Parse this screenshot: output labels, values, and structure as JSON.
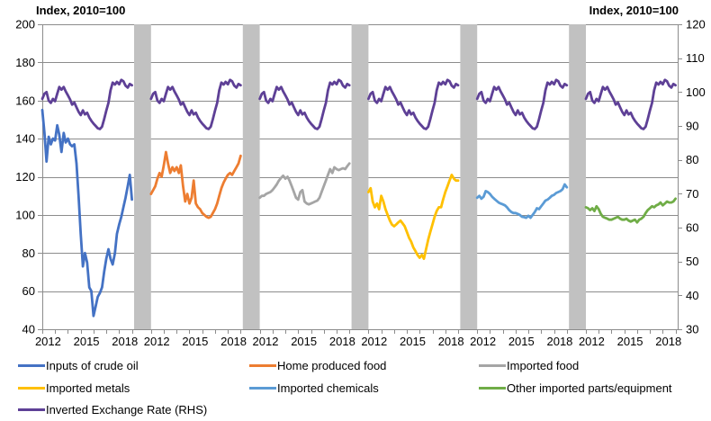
{
  "chart": {
    "left_axis_title": "Index, 2010=100",
    "right_axis_title": "Index, 2010=100"
  },
  "chart_data": {
    "type": "line",
    "layout": "six small-multiple panels separated by grey bands; each panel shows one price series (left axis) plus the inverted exchange rate (right axis)",
    "left_axis": {
      "title": "Index, 2010=100",
      "min": 40,
      "max": 200,
      "step": 20,
      "ticks": [
        200,
        180,
        160,
        140,
        120,
        100,
        80,
        60,
        40
      ]
    },
    "right_axis": {
      "title": "Index, 2010=100",
      "min": 30,
      "max": 120,
      "step": 10,
      "ticks": [
        120,
        110,
        100,
        90,
        80,
        70,
        60,
        50,
        40,
        30
      ]
    },
    "x_axis": {
      "min": 2012,
      "max": 2019.17,
      "tick_step_years": 1,
      "label_years": [
        2012,
        2015,
        2018
      ]
    },
    "x": [
      2012,
      2012.17,
      2012.33,
      2012.5,
      2012.67,
      2012.83,
      2013,
      2013.17,
      2013.33,
      2013.5,
      2013.67,
      2013.83,
      2014,
      2014.17,
      2014.33,
      2014.5,
      2014.67,
      2014.83,
      2015,
      2015.17,
      2015.33,
      2015.5,
      2015.67,
      2015.83,
      2016,
      2016.17,
      2016.33,
      2016.5,
      2016.67,
      2016.83,
      2017,
      2017.17,
      2017.33,
      2017.5,
      2017.67,
      2017.83,
      2018,
      2018.17,
      2018.33,
      2018.5,
      2018.67,
      2018.83,
      2019
    ],
    "panels": [
      {
        "label": "Inputs of crude oil",
        "color": "#4472C4",
        "axis": "left",
        "values": [
          155,
          143,
          128,
          141,
          137,
          140,
          139,
          147,
          142,
          133,
          143,
          138,
          140,
          137,
          136,
          137,
          127,
          110,
          90,
          73,
          80,
          75,
          62,
          60,
          47,
          52,
          57,
          59,
          62,
          70,
          77,
          82,
          77,
          74,
          80,
          90,
          95,
          99,
          104,
          109,
          115,
          121,
          108
        ]
      },
      {
        "label": "Home produced food",
        "color": "#ED7D31",
        "axis": "left",
        "values": [
          111,
          113,
          115,
          119,
          122,
          120,
          126,
          133,
          127,
          122,
          125,
          123,
          125,
          122,
          126,
          115,
          107,
          111,
          106,
          109,
          118,
          106,
          104,
          103,
          101,
          100,
          99,
          98.5,
          99,
          101,
          103,
          106,
          110,
          114,
          117,
          119,
          121,
          122,
          121,
          123,
          125,
          127,
          131
        ]
      },
      {
        "label": "Imported food",
        "color": "#A5A5A5",
        "axis": "left",
        "values": [
          109,
          110,
          110,
          111,
          111.5,
          112,
          113,
          114.5,
          116,
          118,
          119.5,
          120.5,
          119,
          120,
          118,
          115,
          112,
          109,
          108,
          112,
          113,
          107,
          106,
          105.5,
          106,
          106.5,
          107,
          107.5,
          109,
          112,
          115,
          118,
          121,
          124,
          122,
          125,
          124,
          123.5,
          124,
          124.5,
          124,
          125.5,
          127
        ]
      },
      {
        "label": "Imported metals",
        "color": "#FFC000",
        "axis": "left",
        "values": [
          112,
          114,
          107,
          104,
          106,
          103,
          110,
          107,
          103,
          100,
          97,
          95,
          94,
          95,
          96,
          97,
          95.5,
          94,
          91,
          88,
          86,
          83,
          81,
          79,
          77.5,
          79,
          77,
          82,
          87,
          91,
          95,
          99,
          102,
          104,
          104,
          108,
          112,
          115,
          118,
          121,
          119,
          118,
          118
        ]
      },
      {
        "label": "Imported chemicals",
        "color": "#5B9BD5",
        "axis": "left",
        "values": [
          109,
          110,
          108.5,
          109.5,
          112.5,
          112,
          111,
          109.5,
          108.5,
          107.5,
          106.5,
          106,
          105.5,
          105,
          104,
          102.5,
          101.5,
          101,
          101,
          100.5,
          100,
          99,
          98.8,
          98.5,
          99.5,
          98.5,
          100,
          101.5,
          103.5,
          103,
          104.5,
          106,
          107.5,
          108,
          109,
          110,
          110.5,
          111.5,
          112,
          112.5,
          113.5,
          116,
          114.5
        ]
      },
      {
        "label": "Other imported parts/equipment",
        "color": "#70AD47",
        "axis": "left",
        "values": [
          104,
          103.5,
          102.5,
          103.5,
          102,
          104.5,
          103,
          100.5,
          99,
          98.5,
          98,
          97.5,
          97.5,
          98,
          98.5,
          99,
          98,
          97.5,
          97.5,
          98,
          97,
          96.5,
          97,
          97.5,
          96,
          97.5,
          98,
          99,
          101,
          102.5,
          103.5,
          104.5,
          104,
          105,
          105.5,
          106.5,
          105,
          106,
          107,
          106.5,
          106.5,
          107,
          108.5
        ]
      }
    ],
    "overlay": {
      "label": "Inverted Exchange Rate (RHS)",
      "color": "#5E4096",
      "axis": "right",
      "repeated_in_every_panel": true,
      "values": [
        98,
        99.5,
        100,
        97.5,
        96.8,
        98,
        97.3,
        99.5,
        101.5,
        100.7,
        101.5,
        100.2,
        99,
        97.8,
        96.3,
        96.9,
        95.5,
        94.2,
        93.2,
        94.6,
        93.4,
        93.9,
        92.5,
        91.5,
        90.7,
        90,
        89.3,
        89.1,
        89.8,
        92,
        94.5,
        96.8,
        100.5,
        102.8,
        102.2,
        103,
        102.3,
        103.6,
        103.2,
        101.9,
        101.3,
        102.4,
        102
      ]
    },
    "style": {
      "gridline_color": "#8C8C8C",
      "separator_color": "#C1C1C1",
      "text_color": "#000000"
    }
  },
  "legend": {
    "items": [
      {
        "label": "Inputs of crude oil",
        "color": "#4472C4"
      },
      {
        "label": "Home produced food",
        "color": "#ED7D31"
      },
      {
        "label": "Imported food",
        "color": "#A5A5A5"
      },
      {
        "label": "Imported metals",
        "color": "#FFC000"
      },
      {
        "label": "Imported chemicals",
        "color": "#5B9BD5"
      },
      {
        "label": "Other imported parts/equipment",
        "color": "#70AD47"
      },
      {
        "label": "Inverted Exchange Rate (RHS)",
        "color": "#5E4096"
      }
    ]
  }
}
